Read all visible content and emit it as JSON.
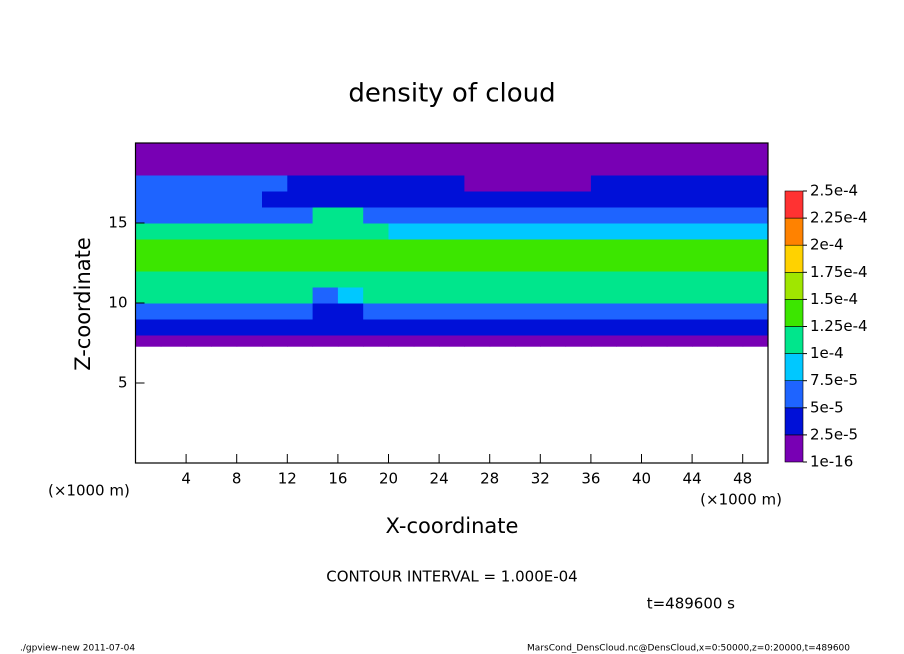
{
  "chart_data": {
    "type": "heatmap",
    "title": "density of cloud",
    "x_label": "X-coordinate",
    "y_label": "Z-coordinate",
    "x_unit": "(×1000 m)",
    "y_unit": "(×1000 m)",
    "contour_interval": "CONTOUR INTERVAL = 1.000E-04",
    "time_label": "t=489600 s",
    "footer_left": "./gpview-new  2011-07-04",
    "footer_right": "MarsCond_DensCloud.nc@DensCloud,x=0:50000,z=0:20000,t=489600",
    "xlim": [
      0,
      50
    ],
    "ylim": [
      0,
      20
    ],
    "xticks": [
      4,
      8,
      12,
      16,
      20,
      24,
      28,
      32,
      36,
      40,
      44,
      48
    ],
    "yticks": [
      5,
      10,
      15
    ],
    "x_bins": [
      0,
      2,
      4,
      6,
      8,
      10,
      12,
      14,
      16,
      18,
      20,
      22,
      24,
      26,
      28,
      30,
      32,
      34,
      36,
      38,
      40,
      42,
      44,
      46,
      48,
      50
    ],
    "y_bins": [
      7.3,
      8,
      9,
      10,
      11,
      12,
      13,
      14,
      15,
      16,
      17,
      18,
      19,
      20
    ],
    "values": [
      [
        1e-05,
        1e-05,
        1e-05,
        1e-05,
        1e-05,
        1e-05,
        1e-05,
        1e-05,
        1e-05,
        1e-05,
        1e-05,
        1e-05,
        1e-05,
        1e-05,
        1e-05,
        1e-05,
        1e-05,
        1e-05,
        1e-05,
        1e-05,
        1e-05,
        1e-05,
        1e-05,
        1e-05,
        1e-05
      ],
      [
        3e-05,
        3e-05,
        3e-05,
        3e-05,
        3e-05,
        3e-05,
        3e-05,
        3e-05,
        4e-05,
        3e-05,
        3e-05,
        3e-05,
        3e-05,
        3e-05,
        3e-05,
        3e-05,
        3e-05,
        3e-05,
        3e-05,
        3e-05,
        3e-05,
        3e-05,
        3e-05,
        3e-05,
        3e-05
      ],
      [
        7e-05,
        7e-05,
        7e-05,
        7e-05,
        7e-05,
        7e-05,
        7e-05,
        4e-05,
        4e-05,
        7e-05,
        7e-05,
        7e-05,
        7e-05,
        7e-05,
        7e-05,
        7e-05,
        7e-05,
        7e-05,
        7e-05,
        7e-05,
        7e-05,
        7e-05,
        7e-05,
        7e-05,
        7e-05
      ],
      [
        0.000105,
        0.000105,
        0.000105,
        0.000105,
        0.000105,
        0.000105,
        0.000105,
        6e-05,
        8e-05,
        0.000105,
        0.000105,
        0.000105,
        0.000105,
        0.000105,
        0.000105,
        0.000105,
        0.000105,
        0.000105,
        0.000105,
        0.000105,
        0.000105,
        0.000105,
        0.000105,
        0.000105,
        0.000105
      ],
      [
        0.00012,
        0.00012,
        0.00012,
        0.00012,
        0.00012,
        0.00012,
        0.00012,
        0.00011,
        0.00012,
        0.00012,
        0.00012,
        0.00012,
        0.00012,
        0.00012,
        0.00012,
        0.00012,
        0.00012,
        0.00012,
        0.00012,
        0.00012,
        0.00012,
        0.00012,
        0.00012,
        0.00012,
        0.00012
      ],
      [
        0.000135,
        0.00013,
        0.00013,
        0.00013,
        0.00013,
        0.00013,
        0.00013,
        0.00013,
        0.00013,
        0.00013,
        0.000135,
        0.00013,
        0.00013,
        0.00013,
        0.00013,
        0.00013,
        0.00013,
        0.00013,
        0.00013,
        0.00013,
        0.00013,
        0.00013,
        0.00013,
        0.00013,
        0.000135
      ],
      [
        0.000125,
        0.000125,
        0.000125,
        0.000125,
        0.000125,
        0.000125,
        0.000125,
        0.000125,
        0.000125,
        0.000125,
        0.000125,
        0.000125,
        0.000125,
        0.000125,
        0.000125,
        0.000125,
        0.000125,
        0.000125,
        0.000125,
        0.000125,
        0.000125,
        0.000125,
        0.000125,
        0.000125,
        0.000125
      ],
      [
        0.000105,
        0.000105,
        0.000105,
        0.000105,
        0.000105,
        0.000105,
        0.000105,
        0.000105,
        0.000105,
        0.000105,
        9e-05,
        9e-05,
        9e-05,
        9e-05,
        9e-05,
        9e-05,
        9e-05,
        9e-05,
        9e-05,
        9e-05,
        9e-05,
        9e-05,
        9e-05,
        9e-05,
        9e-05
      ],
      [
        6e-05,
        6e-05,
        6e-05,
        6e-05,
        6e-05,
        6e-05,
        6e-05,
        0.000102,
        0.000102,
        6e-05,
        6e-05,
        6e-05,
        6e-05,
        6e-05,
        6e-05,
        6e-05,
        6e-05,
        6e-05,
        6e-05,
        6e-05,
        6e-05,
        6e-05,
        6e-05,
        6e-05,
        6e-05
      ],
      [
        6e-05,
        6e-05,
        6e-05,
        6e-05,
        6e-05,
        4e-05,
        4e-05,
        4e-05,
        4e-05,
        4e-05,
        4e-05,
        4e-05,
        4e-05,
        4e-05,
        4e-05,
        4e-05,
        4e-05,
        4e-05,
        4e-05,
        4e-05,
        4e-05,
        4e-05,
        4e-05,
        4e-05,
        4e-05
      ],
      [
        5e-05,
        5e-05,
        5e-05,
        5e-05,
        5e-05,
        5e-05,
        3e-05,
        3e-05,
        3e-05,
        3e-05,
        3e-05,
        3e-05,
        3e-05,
        2e-05,
        2e-05,
        2e-05,
        2e-05,
        2e-05,
        3e-05,
        3e-05,
        3e-05,
        3e-05,
        3e-05,
        3e-05,
        3e-05
      ],
      [
        2e-05,
        2e-05,
        2e-05,
        2e-05,
        2e-05,
        2e-05,
        2e-05,
        2e-05,
        2e-05,
        2e-05,
        2e-05,
        2e-05,
        2e-05,
        8e-06,
        8e-06,
        8e-06,
        8e-06,
        8e-06,
        2e-05,
        2e-05,
        2e-05,
        2e-05,
        2e-05,
        2e-05,
        2e-05
      ],
      [
        1e-05,
        1e-05,
        1e-05,
        1e-05,
        1e-05,
        1e-05,
        1e-05,
        1e-05,
        1e-05,
        1e-05,
        1e-05,
        1e-05,
        1e-05,
        5e-06,
        5e-06,
        5e-06,
        5e-06,
        5e-06,
        5e-06,
        1e-05,
        1e-05,
        1e-05,
        1e-05,
        1e-05,
        1e-05
      ]
    ],
    "levels": [
      {
        "value": 1e-16,
        "label": "1e-16"
      },
      {
        "value": 2.5e-05,
        "label": "2.5e-5"
      },
      {
        "value": 5e-05,
        "label": "5e-5"
      },
      {
        "value": 7.5e-05,
        "label": "7.5e-5"
      },
      {
        "value": 0.0001,
        "label": "1e-4"
      },
      {
        "value": 0.000125,
        "label": "1.25e-4"
      },
      {
        "value": 0.00015,
        "label": "1.5e-4"
      },
      {
        "value": 0.000175,
        "label": "1.75e-4"
      },
      {
        "value": 0.0002,
        "label": "2e-4"
      },
      {
        "value": 0.000225,
        "label": "2.25e-4"
      },
      {
        "value": 0.00025,
        "label": "2.5e-4"
      }
    ],
    "colors": [
      "#7800b4",
      "#0010d8",
      "#1e64ff",
      "#00c8ff",
      "#00e68c",
      "#3ce600",
      "#a0e600",
      "#ffd200",
      "#ff8200",
      "#ff3232"
    ]
  }
}
